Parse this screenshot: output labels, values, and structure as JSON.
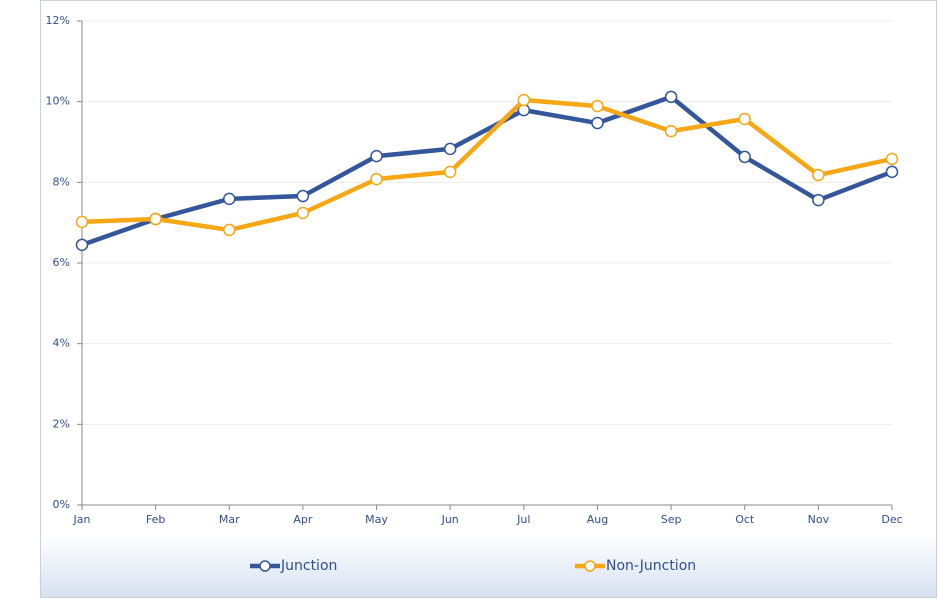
{
  "chart_data": {
    "type": "line",
    "categories": [
      "Jan",
      "Feb",
      "Mar",
      "Apr",
      "May",
      "Jun",
      "Jul",
      "Aug",
      "Sep",
      "Oct",
      "Nov",
      "Dec"
    ],
    "series": [
      {
        "name": "Junction",
        "color": "#34569a",
        "values": [
          6.45,
          7.09,
          7.59,
          7.66,
          8.65,
          8.83,
          9.79,
          9.47,
          10.12,
          8.63,
          7.56,
          8.26
        ]
      },
      {
        "name": "Non-Junction",
        "color": "#f7a614",
        "values": [
          7.02,
          7.09,
          6.82,
          7.24,
          8.08,
          8.26,
          10.04,
          9.89,
          9.27,
          9.57,
          8.18,
          8.58
        ]
      }
    ],
    "ylim": [
      0,
      12
    ],
    "yticks": [
      {
        "value": 0,
        "label": "0%"
      },
      {
        "value": 2,
        "label": "2%"
      },
      {
        "value": 4,
        "label": "4%"
      },
      {
        "value": 6,
        "label": "6%"
      },
      {
        "value": 8,
        "label": "8%"
      },
      {
        "value": 10,
        "label": "10%"
      },
      {
        "value": 12,
        "label": "12%"
      }
    ],
    "grid": true,
    "legend": "bottom"
  }
}
